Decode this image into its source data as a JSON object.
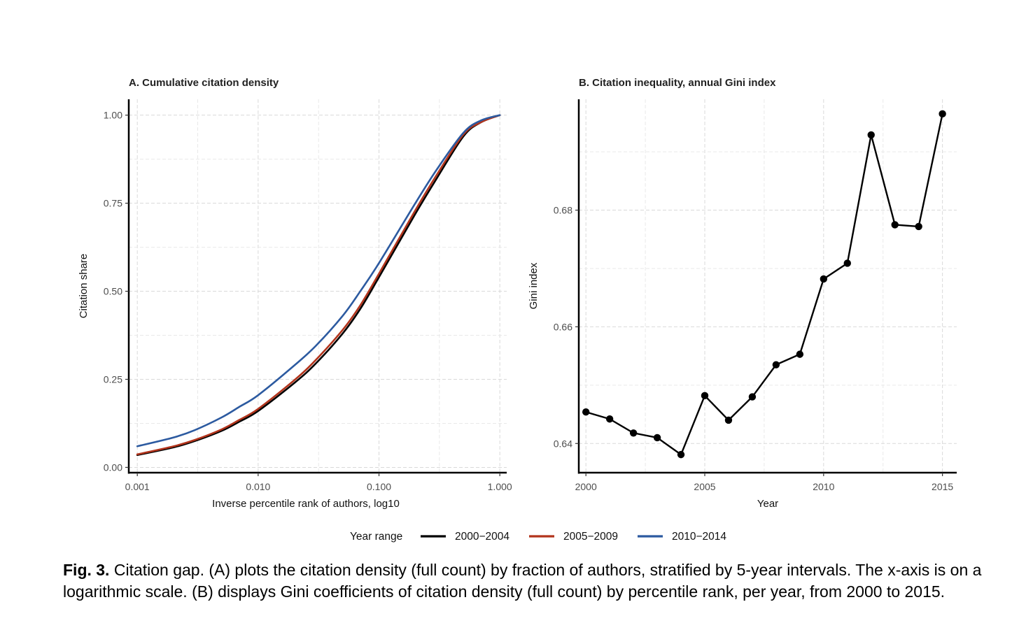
{
  "chart_data": [
    {
      "type": "line",
      "title": "A. Cumulative citation density",
      "xlabel": "Inverse percentile rank of authors, log10",
      "ylabel": "Citation share",
      "xscale": "log10",
      "xlim": [
        0.001,
        1.0
      ],
      "ylim": [
        0.0,
        1.0
      ],
      "xticks": [
        0.001,
        0.01,
        0.1,
        1.0
      ],
      "xtick_labels": [
        "0.001",
        "0.010",
        "0.100",
        "1.000"
      ],
      "yticks": [
        0.0,
        0.25,
        0.5,
        0.75,
        1.0
      ],
      "ytick_labels": [
        "0.00",
        "0.25",
        "0.50",
        "0.75",
        "1.00"
      ],
      "grid": true,
      "x": [
        0.001,
        0.002,
        0.003,
        0.005,
        0.007,
        0.01,
        0.02,
        0.03,
        0.05,
        0.07,
        0.1,
        0.2,
        0.3,
        0.5,
        0.7,
        1.0
      ],
      "series": [
        {
          "name": "2000−2004",
          "color": "#000000",
          "values": [
            0.035,
            0.057,
            0.075,
            0.104,
            0.13,
            0.16,
            0.24,
            0.295,
            0.38,
            0.45,
            0.54,
            0.72,
            0.82,
            0.94,
            0.98,
            1.0
          ]
        },
        {
          "name": "2005−2009",
          "color": "#b2341c",
          "values": [
            0.037,
            0.06,
            0.078,
            0.108,
            0.135,
            0.166,
            0.248,
            0.305,
            0.39,
            0.46,
            0.55,
            0.73,
            0.83,
            0.945,
            0.98,
            1.0
          ]
        },
        {
          "name": "2010−2014",
          "color": "#2c5aa0",
          "values": [
            0.06,
            0.085,
            0.106,
            0.142,
            0.172,
            0.205,
            0.29,
            0.345,
            0.43,
            0.5,
            0.58,
            0.75,
            0.845,
            0.95,
            0.985,
            1.0
          ]
        }
      ]
    },
    {
      "type": "line",
      "title": "B. Citation inequality, annual Gini index",
      "xlabel": "Year",
      "ylabel": "Gini index",
      "xlim": [
        1999.7,
        2015.6
      ],
      "ylim": [
        0.635,
        0.699
      ],
      "xticks": [
        2000,
        2005,
        2010,
        2015
      ],
      "xtick_labels": [
        "2000",
        "2005",
        "2010",
        "2015"
      ],
      "yticks": [
        0.64,
        0.66,
        0.68
      ],
      "ytick_labels": [
        "0.64",
        "0.66",
        "0.68"
      ],
      "grid": true,
      "markers": true,
      "x": [
        2000,
        2001,
        2002,
        2003,
        2004,
        2005,
        2006,
        2007,
        2008,
        2009,
        2010,
        2011,
        2012,
        2013,
        2014,
        2015
      ],
      "series": [
        {
          "color": "#000000",
          "values": [
            0.6454,
            0.6442,
            0.6418,
            0.641,
            0.6381,
            0.6482,
            0.644,
            0.648,
            0.6535,
            0.6553,
            0.6682,
            0.6709,
            0.6929,
            0.6775,
            0.6772,
            0.6965
          ]
        }
      ]
    }
  ],
  "legend": {
    "title": "Year range",
    "placement": "bottom-center",
    "items": [
      {
        "label": "2000−2004",
        "color": "#000000"
      },
      {
        "label": "2005−2009",
        "color": "#b2341c"
      },
      {
        "label": "2010−2014",
        "color": "#2c5aa0"
      }
    ]
  },
  "caption": {
    "label": "Fig. 3.",
    "text": " Citation gap. (A) plots the citation density (full count) by fraction of authors, stratified by 5-year intervals. The x-axis is on a logarithmic scale. (B) displays Gini coefficients of citation density (full count) by percentile rank, per year, from 2000 to 2015."
  }
}
